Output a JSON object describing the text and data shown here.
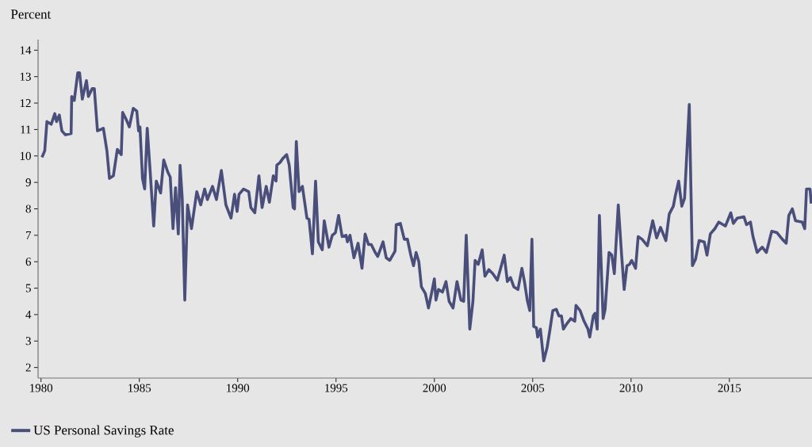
{
  "chart_data": {
    "type": "line",
    "ylabel": "Percent",
    "legend": "bottom left",
    "line_style": "solid",
    "xlim": [
      1979.85,
      2019.2
    ],
    "ylim": [
      1.6,
      14.4
    ],
    "xticks": [
      1980,
      1985,
      1990,
      1995,
      2000,
      2005,
      2010,
      2015
    ],
    "yticks": [
      2,
      3,
      4,
      5,
      6,
      7,
      8,
      9,
      10,
      11,
      12,
      13,
      14
    ],
    "x": [
      1980.05,
      1980.19,
      1980.3,
      1980.52,
      1980.7,
      1980.79,
      1980.93,
      1981.06,
      1981.24,
      1981.53,
      1981.56,
      1981.69,
      1981.87,
      1981.96,
      1982.1,
      1982.31,
      1982.41,
      1982.6,
      1982.71,
      1982.87,
      1983.04,
      1983.17,
      1983.35,
      1983.48,
      1983.68,
      1983.88,
      1984.08,
      1984.15,
      1984.35,
      1984.49,
      1984.69,
      1984.87,
      1984.96,
      1985.03,
      1985.16,
      1985.27,
      1985.4,
      1985.56,
      1985.73,
      1985.86,
      1986.08,
      1986.24,
      1986.44,
      1986.57,
      1986.71,
      1986.84,
      1986.98,
      1987.07,
      1987.18,
      1987.31,
      1987.45,
      1987.65,
      1987.92,
      1988.12,
      1988.32,
      1988.46,
      1988.72,
      1988.92,
      1989.17,
      1989.4,
      1989.66,
      1989.84,
      1989.97,
      1990.07,
      1990.3,
      1990.56,
      1990.67,
      1990.87,
      1991.08,
      1991.24,
      1991.45,
      1991.61,
      1991.81,
      1991.95,
      1991.99,
      1992.15,
      1992.29,
      1992.49,
      1992.62,
      1992.82,
      1992.89,
      1992.98,
      1993.12,
      1993.29,
      1993.52,
      1993.63,
      1993.8,
      1993.96,
      1994.1,
      1994.3,
      1994.4,
      1994.64,
      1994.81,
      1994.97,
      1995.13,
      1995.31,
      1995.51,
      1995.58,
      1995.71,
      1995.91,
      1996.12,
      1996.32,
      1996.48,
      1996.65,
      1996.79,
      1996.99,
      1997.12,
      1997.39,
      1997.55,
      1997.73,
      1998.0,
      1998.06,
      1998.27,
      1998.47,
      1998.63,
      1998.8,
      1998.94,
      1999.07,
      1999.21,
      1999.34,
      1999.54,
      1999.7,
      1999.84,
      2000.0,
      2000.08,
      2000.21,
      2000.41,
      2000.59,
      2000.75,
      2000.95,
      2001.15,
      2001.35,
      2001.49,
      2001.62,
      2001.8,
      2001.96,
      2002.07,
      2002.23,
      2002.43,
      2002.57,
      2002.77,
      2002.97,
      2003.2,
      2003.37,
      2003.55,
      2003.71,
      2003.87,
      2004.04,
      2004.25,
      2004.45,
      2004.58,
      2004.72,
      2004.85,
      2004.96,
      2005.05,
      2005.19,
      2005.25,
      2005.39,
      2005.56,
      2005.73,
      2005.86,
      2006.02,
      2006.2,
      2006.33,
      2006.46,
      2006.56,
      2006.73,
      2006.94,
      2007.14,
      2007.2,
      2007.41,
      2007.61,
      2007.81,
      2007.9,
      2008.08,
      2008.17,
      2008.28,
      2008.39,
      2008.58,
      2008.68,
      2008.88,
      2009.02,
      2009.15,
      2009.35,
      2009.52,
      2009.65,
      2009.79,
      2009.92,
      2010.03,
      2010.23,
      2010.36,
      2010.56,
      2010.83,
      2011.1,
      2011.3,
      2011.5,
      2011.77,
      2011.94,
      2012.15,
      2012.25,
      2012.42,
      2012.58,
      2012.72,
      2012.96,
      2013.12,
      2013.28,
      2013.46,
      2013.72,
      2013.86,
      2014.03,
      2014.26,
      2014.46,
      2014.8,
      2015.07,
      2015.2,
      2015.4,
      2015.74,
      2015.87,
      2016.07,
      2016.2,
      2016.41,
      2016.67,
      2016.88,
      2017.15,
      2017.42,
      2017.69,
      2017.89,
      2018.02,
      2018.2,
      2018.36,
      2018.7,
      2018.83,
      2018.92,
      2019.1,
      2019.16
    ],
    "series": [
      {
        "name": "US Personal Savings Rate",
        "color": "#4a4e7a",
        "values": [
          9.95,
          10.2,
          11.3,
          11.2,
          11.6,
          11.3,
          11.55,
          10.95,
          10.8,
          10.85,
          12.25,
          12.1,
          13.15,
          13.15,
          12.15,
          12.85,
          12.25,
          12.55,
          12.55,
          10.95,
          11.0,
          11.05,
          10.2,
          9.15,
          9.25,
          10.25,
          10.05,
          11.65,
          11.35,
          11.1,
          11.8,
          11.7,
          10.95,
          11.1,
          9.15,
          8.75,
          11.05,
          9.3,
          7.35,
          9.05,
          8.6,
          9.85,
          9.4,
          9.2,
          7.25,
          8.8,
          7.05,
          9.65,
          8.4,
          4.55,
          8.15,
          7.25,
          8.65,
          8.15,
          8.75,
          8.35,
          8.85,
          8.35,
          9.45,
          8.15,
          7.65,
          8.55,
          7.9,
          8.55,
          8.75,
          8.65,
          8.05,
          7.85,
          9.25,
          8.05,
          8.85,
          8.25,
          9.25,
          9.05,
          9.65,
          9.75,
          9.9,
          10.05,
          9.65,
          8.05,
          8.0,
          10.55,
          8.65,
          8.85,
          7.65,
          7.6,
          6.3,
          9.05,
          6.75,
          6.45,
          7.55,
          6.55,
          7.0,
          7.1,
          7.75,
          6.95,
          7.0,
          6.75,
          7.0,
          6.15,
          6.7,
          5.75,
          7.05,
          6.65,
          6.65,
          6.35,
          6.2,
          6.75,
          6.15,
          6.05,
          6.4,
          7.4,
          7.45,
          6.85,
          6.85,
          6.25,
          5.85,
          6.35,
          6.0,
          5.05,
          4.8,
          4.25,
          4.75,
          5.35,
          4.55,
          4.95,
          4.85,
          5.25,
          4.5,
          4.25,
          5.25,
          4.55,
          4.5,
          7.0,
          3.45,
          4.5,
          6.05,
          5.9,
          6.45,
          5.45,
          5.7,
          5.55,
          5.3,
          5.75,
          6.25,
          5.25,
          5.4,
          5.05,
          4.95,
          5.75,
          5.25,
          4.55,
          4.15,
          6.85,
          3.55,
          3.5,
          3.15,
          3.45,
          2.25,
          2.75,
          3.35,
          4.15,
          4.2,
          3.95,
          3.95,
          3.45,
          3.65,
          3.85,
          3.75,
          4.35,
          4.15,
          3.75,
          3.45,
          3.15,
          3.95,
          4.05,
          3.45,
          7.75,
          3.85,
          4.2,
          6.35,
          6.25,
          5.55,
          8.15,
          6.25,
          4.95,
          5.85,
          5.9,
          6.05,
          5.75,
          6.95,
          6.85,
          6.6,
          7.55,
          6.9,
          7.3,
          6.8,
          7.8,
          8.1,
          8.5,
          9.05,
          8.1,
          8.4,
          11.95,
          5.85,
          6.1,
          6.8,
          6.75,
          6.25,
          7.05,
          7.25,
          7.5,
          7.35,
          7.85,
          7.45,
          7.65,
          7.7,
          7.4,
          7.5,
          6.95,
          6.35,
          6.55,
          6.35,
          7.15,
          7.1,
          6.85,
          6.7,
          7.75,
          8.0,
          7.55,
          7.5,
          7.25,
          8.75,
          8.75,
          8.2
        ]
      }
    ]
  }
}
